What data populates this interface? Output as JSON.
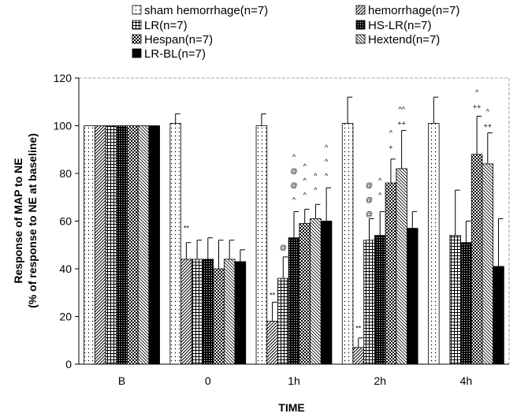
{
  "chart_data": {
    "type": "bar",
    "categories": [
      "B",
      "0",
      "1h",
      "2h",
      "4h"
    ],
    "xlabel": "TIME",
    "ylabel_line1": "Response of MAP to NE",
    "ylabel_line2": "(% of response to NE at baseline)",
    "ylim": [
      0,
      120
    ],
    "yticks": [
      "0",
      "20",
      "40",
      "60",
      "80",
      "100",
      "120"
    ],
    "grid": false,
    "legend_position": "top",
    "series": [
      {
        "name": "sham hemorrhage(n=7)",
        "pattern": "dots",
        "values": [
          100,
          101,
          100,
          101,
          101
        ],
        "errors": [
          0,
          4,
          5,
          11,
          11
        ]
      },
      {
        "name": "hemorrhage(n=7)",
        "pattern": "diag",
        "values": [
          100,
          44,
          18,
          7,
          null
        ],
        "errors": [
          0,
          7,
          8,
          4,
          null
        ]
      },
      {
        "name": "LR(n=7)",
        "pattern": "grid",
        "values": [
          100,
          44,
          36,
          52,
          54
        ],
        "errors": [
          0,
          8,
          9,
          9,
          19
        ]
      },
      {
        "name": "HS-LR(n=7)",
        "pattern": "dense",
        "values": [
          100,
          44,
          53,
          54,
          51
        ],
        "errors": [
          0,
          9,
          11,
          10,
          9
        ]
      },
      {
        "name": "Hespan(n=7)",
        "pattern": "check",
        "values": [
          100,
          40,
          59,
          76,
          88
        ],
        "errors": [
          0,
          12,
          6,
          10,
          16
        ]
      },
      {
        "name": "Hextend(n=7)",
        "pattern": "backdiag",
        "values": [
          100,
          44,
          61,
          82,
          84
        ],
        "errors": [
          0,
          8,
          6,
          16,
          13
        ]
      },
      {
        "name": "LR-BL(n=7)",
        "pattern": "solid",
        "values": [
          100,
          43,
          60,
          57,
          41
        ],
        "errors": [
          0,
          5,
          14,
          7,
          20
        ]
      }
    ],
    "annotations": [
      {
        "category": "0",
        "series": 1,
        "text": "**",
        "value": 56
      },
      {
        "category": "1h",
        "series": 1,
        "text": "**",
        "value": 28
      },
      {
        "category": "2h",
        "series": 1,
        "text": "**",
        "value": 14
      },
      {
        "category": "1h",
        "series": 2,
        "text": "@",
        "value": 48
      },
      {
        "category": "1h",
        "series": 3,
        "text": "^",
        "value": 68
      },
      {
        "category": "1h",
        "series": 3,
        "text": "@",
        "value": 74
      },
      {
        "category": "1h",
        "series": 3,
        "text": "@",
        "value": 80
      },
      {
        "category": "1h",
        "series": 3,
        "text": "^",
        "value": 86
      },
      {
        "category": "1h",
        "series": 4,
        "text": "^",
        "value": 70
      },
      {
        "category": "1h",
        "series": 4,
        "text": "^",
        "value": 76
      },
      {
        "category": "1h",
        "series": 4,
        "text": "^",
        "value": 82
      },
      {
        "category": "1h",
        "series": 5,
        "text": "^",
        "value": 72
      },
      {
        "category": "1h",
        "series": 5,
        "text": "^",
        "value": 78
      },
      {
        "category": "1h",
        "series": 6,
        "text": "^",
        "value": 78
      },
      {
        "category": "1h",
        "series": 6,
        "text": "^",
        "value": 84
      },
      {
        "category": "1h",
        "series": 6,
        "text": "^",
        "value": 90
      },
      {
        "category": "2h",
        "series": 2,
        "text": "@",
        "value": 62
      },
      {
        "category": "2h",
        "series": 2,
        "text": "@",
        "value": 68
      },
      {
        "category": "2h",
        "series": 2,
        "text": "@",
        "value": 74
      },
      {
        "category": "2h",
        "series": 3,
        "text": "^",
        "value": 70
      },
      {
        "category": "2h",
        "series": 3,
        "text": "^",
        "value": 76
      },
      {
        "category": "2h",
        "series": 4,
        "text": "+",
        "value": 90
      },
      {
        "category": "2h",
        "series": 4,
        "text": "^",
        "value": 96
      },
      {
        "category": "2h",
        "series": 5,
        "text": "++",
        "value": 100
      },
      {
        "category": "2h",
        "series": 5,
        "text": "^^",
        "value": 106
      },
      {
        "category": "4h",
        "series": 4,
        "text": "++",
        "value": 107
      },
      {
        "category": "4h",
        "series": 4,
        "text": "^",
        "value": 113
      },
      {
        "category": "4h",
        "series": 5,
        "text": "++",
        "value": 99
      },
      {
        "category": "4h",
        "series": 5,
        "text": "^",
        "value": 105
      }
    ]
  }
}
